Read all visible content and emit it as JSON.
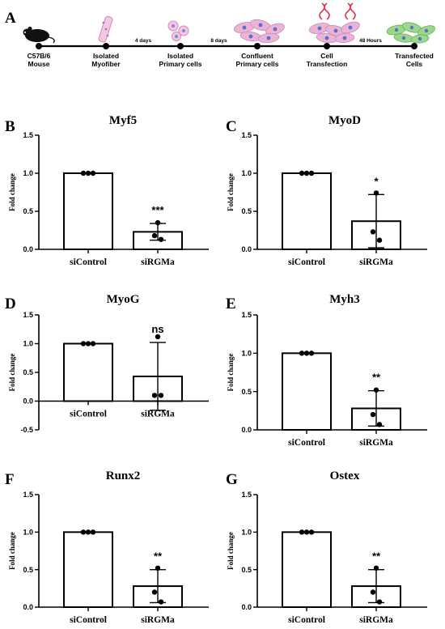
{
  "timeline": {
    "panel_label": "A",
    "stages": [
      {
        "line1": "C57B/6",
        "line2": "Mouse",
        "icon": "mouse-icon"
      },
      {
        "line1": "Isolated",
        "line2": "Myofiber",
        "icon": "myofiber-icon"
      },
      {
        "line1": "Isolated",
        "line2": "Primary cells",
        "icon": "primary-cells-icon"
      },
      {
        "line1": "Confluent",
        "line2": "Primary cells",
        "icon": "confluent-cells-icon"
      },
      {
        "line1": "Cell",
        "line2": "Transfection",
        "icon": "transfection-icon"
      },
      {
        "line1": "Transfected",
        "line2": "Cells",
        "icon": "transfected-cells-icon"
      }
    ],
    "intervals": [
      "",
      "4 days",
      "8 days",
      "",
      "48 Hours"
    ],
    "colors": {
      "cell_pink": "#e9b4d6",
      "nucleus_blue": "#5b6fc9",
      "transfected_green": "#9bd88a",
      "dna_red": "#d9334a"
    }
  },
  "chart_data": [
    {
      "panel": "B",
      "type": "bar",
      "title": "Myf5",
      "ylabel": "Fold change",
      "categories": [
        "siControl",
        "siRGMa"
      ],
      "values": [
        1.0,
        0.23
      ],
      "error_sd": [
        0,
        0.11
      ],
      "points": [
        [
          1.0,
          1.0,
          1.0
        ],
        [
          0.35,
          0.18,
          0.13
        ]
      ],
      "significance": [
        "",
        "***"
      ],
      "ylim": [
        0,
        1.5
      ],
      "yticks": [
        "0.0",
        "0.5",
        "1.0",
        "1.5"
      ]
    },
    {
      "panel": "C",
      "type": "bar",
      "title": "MyoD",
      "ylabel": "Fold change",
      "categories": [
        "siControl",
        "siRGMa"
      ],
      "values": [
        1.0,
        0.37
      ],
      "error_sd": [
        0,
        0.35
      ],
      "points": [
        [
          1.0,
          1.0,
          1.0
        ],
        [
          0.74,
          0.23,
          0.12
        ]
      ],
      "significance": [
        "",
        "*"
      ],
      "ylim": [
        0,
        1.5
      ],
      "yticks": [
        "0.0",
        "0.5",
        "1.0",
        "1.5"
      ]
    },
    {
      "panel": "D",
      "type": "bar",
      "title": "MyoG",
      "ylabel": "Fold change",
      "categories": [
        "siControl",
        "siRGMa"
      ],
      "values": [
        1.0,
        0.43
      ],
      "error_sd": [
        0,
        0.59
      ],
      "points": [
        [
          1.0,
          1.0,
          1.0
        ],
        [
          1.12,
          0.1,
          0.1
        ]
      ],
      "significance": [
        "",
        "ns"
      ],
      "ylim": [
        -0.5,
        1.5
      ],
      "yticks": [
        "-0.5",
        "0.0",
        "0.5",
        "1.0",
        "1.5"
      ]
    },
    {
      "panel": "E",
      "type": "bar",
      "title": "Myh3",
      "ylabel": "Fold change",
      "categories": [
        "siControl",
        "siRGMa"
      ],
      "values": [
        1.0,
        0.28
      ],
      "error_sd": [
        0,
        0.23
      ],
      "points": [
        [
          1.0,
          1.0,
          1.0
        ],
        [
          0.52,
          0.2,
          0.07
        ]
      ],
      "significance": [
        "",
        "**"
      ],
      "ylim": [
        0,
        1.5
      ],
      "yticks": [
        "0.0",
        "0.5",
        "1.0",
        "1.5"
      ]
    },
    {
      "panel": "F",
      "type": "bar",
      "title": "Runx2",
      "ylabel": "Fold change",
      "categories": [
        "siControl",
        "siRGMa"
      ],
      "values": [
        1.0,
        0.28
      ],
      "error_sd": [
        0,
        0.22
      ],
      "points": [
        [
          1.0,
          1.0,
          1.0
        ],
        [
          0.52,
          0.2,
          0.07
        ]
      ],
      "significance": [
        "",
        "**"
      ],
      "ylim": [
        0,
        1.5
      ],
      "yticks": [
        "0.0",
        "0.5",
        "1.0",
        "1.5"
      ]
    },
    {
      "panel": "G",
      "type": "bar",
      "title": "Ostex",
      "ylabel": "Fold change",
      "categories": [
        "siControl",
        "siRGMa"
      ],
      "values": [
        1.0,
        0.28
      ],
      "error_sd": [
        0,
        0.22
      ],
      "points": [
        [
          1.0,
          1.0,
          1.0
        ],
        [
          0.52,
          0.2,
          0.07
        ]
      ],
      "significance": [
        "",
        "**"
      ],
      "ylim": [
        0,
        1.5
      ],
      "yticks": [
        "0.0",
        "0.5",
        "1.0",
        "1.5"
      ]
    }
  ]
}
